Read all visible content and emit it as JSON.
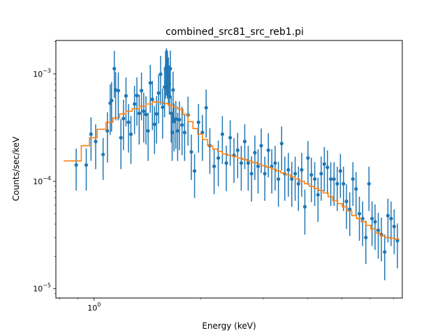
{
  "chart_data": {
    "type": "scatter",
    "title": "combined_src81_src_reb1.pi",
    "xlabel": "Energy (keV)",
    "ylabel": "Counts/sec/keV",
    "xscale": "log",
    "yscale": "log",
    "xlim": [
      0.78,
      7.4
    ],
    "ylim": [
      8.2e-06,
      0.00205
    ],
    "x_ticks": [
      {
        "value": 1.0,
        "label": "10^0"
      }
    ],
    "y_ticks": [
      {
        "value": 1e-05,
        "label": "10^-5"
      },
      {
        "value": 0.0001,
        "label": "10^-4"
      },
      {
        "value": 0.001,
        "label": "10^-3"
      }
    ],
    "grid": false,
    "colors": {
      "data": "#1f77b4",
      "model": "#ff7f0e"
    },
    "series": [
      {
        "type": "errorbar",
        "x": [
          0.89,
          0.95,
          0.98,
          1.01,
          1.06,
          1.09,
          1.11,
          1.12,
          1.14,
          1.15,
          1.17,
          1.19,
          1.21,
          1.23,
          1.25,
          1.27,
          1.3,
          1.32,
          1.34,
          1.36,
          1.38,
          1.4,
          1.42,
          1.44,
          1.46,
          1.48,
          1.5,
          1.52,
          1.54,
          1.56,
          1.58,
          1.59,
          1.6,
          1.61,
          1.62,
          1.63,
          1.64,
          1.65,
          1.66,
          1.67,
          1.68,
          1.7,
          1.72,
          1.74,
          1.77,
          1.8,
          1.84,
          1.88,
          1.92,
          1.97,
          2.02,
          2.07,
          2.12,
          2.18,
          2.24,
          2.3,
          2.36,
          2.42,
          2.48,
          2.54,
          2.6,
          2.66,
          2.72,
          2.78,
          2.84,
          2.9,
          2.96,
          3.03,
          3.1,
          3.17,
          3.24,
          3.31,
          3.38,
          3.45,
          3.53,
          3.61,
          3.69,
          3.77,
          3.85,
          3.93,
          4.01,
          4.1,
          4.19,
          4.28,
          4.37,
          4.46,
          4.55,
          4.65,
          4.75,
          4.85,
          4.95,
          5.05,
          5.15,
          5.26,
          5.37,
          5.48,
          5.6,
          5.72,
          5.84,
          5.96,
          6.08,
          6.2,
          6.33,
          6.46,
          6.6,
          6.74,
          6.88,
          7.02,
          7.17
        ],
        "y": [
          0.000142,
          0.000142,
          0.000275,
          0.000235,
          0.000178,
          0.000295,
          0.000535,
          0.000565,
          0.00112,
          0.00071,
          0.0007,
          0.000255,
          0.000385,
          0.000625,
          0.000355,
          0.000275,
          0.000525,
          0.00063,
          0.00043,
          0.0007,
          0.00045,
          0.00042,
          0.000295,
          0.000825,
          0.00058,
          0.00034,
          0.000425,
          0.000665,
          0.000995,
          0.00049,
          0.000755,
          0.00112,
          0.00118,
          0.00112,
          0.000965,
          0.00081,
          0.00112,
          0.00043,
          0.000285,
          0.00071,
          0.00036,
          0.00038,
          0.000295,
          0.000375,
          0.000335,
          0.000285,
          0.000415,
          0.000188,
          0.000125,
          0.000355,
          0.000285,
          0.000485,
          0.000215,
          0.000138,
          0.000165,
          0.000275,
          0.000148,
          0.000255,
          0.000175,
          0.000195,
          0.000148,
          0.000235,
          0.000148,
          0.000118,
          0.000185,
          0.000138,
          0.000215,
          0.000118,
          0.000195,
          0.000138,
          0.000148,
          0.000105,
          0.000225,
          0.000118,
          0.000128,
          0.000105,
          0.000118,
          9.5e-05,
          0.000128,
          5.8e-05,
          0.000165,
          0.000115,
          0.000105,
          7.5e-05,
          0.000118,
          0.000145,
          0.000135,
          0.000105,
          0.000105,
          9.5e-05,
          0.000125,
          9.5e-05,
          6.5e-05,
          5.5e-05,
          0.000105,
          8.5e-05,
          5e-05,
          4.5e-05,
          3e-05,
          9.5e-05,
          4.5e-05,
          4.2e-05,
          3.5e-05,
          3.2e-05,
          2.2e-05,
          4.8e-05,
          4.5e-05,
          3.8e-05,
          2.8e-05
        ],
        "err_low": [
          6e-05,
          6e-05,
          0.00012,
          0.000105,
          7.5e-05,
          0.000145,
          0.000265,
          0.000275,
          0.00052,
          0.00034,
          0.00033,
          0.000125,
          0.00019,
          0.0003,
          0.00017,
          0.00013,
          0.00025,
          0.0003,
          0.00021,
          0.00033,
          0.00022,
          0.0002,
          0.00014,
          0.00039,
          0.00028,
          0.00016,
          0.0002,
          0.00032,
          0.00048,
          0.00024,
          0.00036,
          0.00053,
          0.00055,
          0.00053,
          0.00046,
          0.00039,
          0.00053,
          0.0002,
          0.00013,
          0.00034,
          0.00017,
          0.00018,
          0.00014,
          0.00018,
          0.00016,
          0.00013,
          0.0002,
          8.5e-05,
          5.5e-05,
          0.00017,
          0.00013,
          0.00023,
          9.8e-05,
          6.2e-05,
          7.5e-05,
          0.00013,
          6.7e-05,
          0.000115,
          7.8e-05,
          8.8e-05,
          6.6e-05,
          0.000105,
          6.6e-05,
          5.3e-05,
          8.2e-05,
          6.1e-05,
          9.6e-05,
          5.2e-05,
          8.6e-05,
          6.1e-05,
          6.6e-05,
          4.7e-05,
          9.9e-05,
          5.2e-05,
          5.6e-05,
          4.7e-05,
          5.2e-05,
          4.2e-05,
          5.6e-05,
          2.6e-05,
          7.2e-05,
          5.1e-05,
          4.6e-05,
          3.3e-05,
          5.2e-05,
          6.4e-05,
          5.9e-05,
          4.6e-05,
          4.6e-05,
          4.2e-05,
          5.5e-05,
          4.2e-05,
          2.9e-05,
          2.4e-05,
          4.6e-05,
          3.7e-05,
          2.2e-05,
          2e-05,
          1.3e-05,
          4.2e-05,
          2e-05,
          1.9e-05,
          1.6e-05,
          1.4e-05,
          1e-05,
          2.1e-05,
          2e-05,
          1.7e-05,
          1.25e-05
        ],
        "err_high": [
          6e-05,
          6e-05,
          0.00012,
          0.000105,
          7.5e-05,
          0.000145,
          0.000265,
          0.000275,
          0.00052,
          0.00034,
          0.00033,
          0.000125,
          0.00019,
          0.0003,
          0.00017,
          0.00013,
          0.00025,
          0.0003,
          0.00021,
          0.00033,
          0.00022,
          0.0002,
          0.00014,
          0.00039,
          0.00028,
          0.00016,
          0.0002,
          0.00032,
          0.00048,
          0.00024,
          0.00036,
          0.00053,
          0.00055,
          0.00053,
          0.00046,
          0.00039,
          0.00053,
          0.0002,
          0.00013,
          0.00034,
          0.00017,
          0.00018,
          0.00014,
          0.00018,
          0.00016,
          0.00013,
          0.0002,
          8.5e-05,
          5.5e-05,
          0.00017,
          0.00013,
          0.00023,
          9.8e-05,
          6.2e-05,
          7.5e-05,
          0.00013,
          6.7e-05,
          0.000115,
          7.8e-05,
          8.8e-05,
          6.6e-05,
          0.000105,
          6.6e-05,
          5.3e-05,
          8.2e-05,
          6.1e-05,
          9.6e-05,
          5.2e-05,
          8.6e-05,
          6.1e-05,
          6.6e-05,
          4.7e-05,
          9.9e-05,
          5.2e-05,
          5.6e-05,
          4.7e-05,
          5.2e-05,
          4.2e-05,
          5.6e-05,
          2.6e-05,
          7.2e-05,
          5.1e-05,
          4.6e-05,
          3.3e-05,
          5.2e-05,
          6.4e-05,
          5.9e-05,
          4.6e-05,
          4.6e-05,
          4.2e-05,
          5.5e-05,
          4.2e-05,
          2.9e-05,
          2.4e-05,
          4.6e-05,
          3.7e-05,
          2.2e-05,
          2e-05,
          1.3e-05,
          4.2e-05,
          2e-05,
          1.9e-05,
          1.6e-05,
          1.4e-05,
          1e-05,
          2.1e-05,
          2e-05,
          1.7e-05,
          1.25e-05
        ]
      },
      {
        "type": "step",
        "x": [
          0.82,
          0.92,
          0.97,
          1.02,
          1.08,
          1.13,
          1.18,
          1.23,
          1.28,
          1.34,
          1.4,
          1.46,
          1.52,
          1.57,
          1.62,
          1.67,
          1.72,
          1.78,
          1.84,
          1.9,
          1.96,
          2.02,
          2.09,
          2.16,
          2.23,
          2.3,
          2.38,
          2.46,
          2.54,
          2.62,
          2.7,
          2.79,
          2.88,
          2.97,
          3.06,
          3.16,
          3.26,
          3.36,
          3.47,
          3.58,
          3.69,
          3.8,
          3.92,
          4.04,
          4.17,
          4.3,
          4.43,
          4.57,
          4.71,
          4.86,
          5.01,
          5.17,
          5.33,
          5.5,
          5.67,
          5.85,
          6.03,
          6.22,
          6.42,
          6.62,
          6.83,
          7.05
        ],
        "y": [
          0.000155,
          0.000215,
          0.000255,
          0.000305,
          0.000355,
          0.00039,
          0.000425,
          0.00045,
          0.000475,
          0.0005,
          0.000525,
          0.00055,
          0.000545,
          0.00053,
          0.00051,
          0.00049,
          0.00047,
          0.00042,
          0.00036,
          0.00031,
          0.000275,
          0.000245,
          0.000215,
          0.0002,
          0.00019,
          0.00018,
          0.000175,
          0.00017,
          0.000165,
          0.00016,
          0.000155,
          0.00015,
          0.000145,
          0.00014,
          0.000135,
          0.00013,
          0.000125,
          0.00012,
          0.000115,
          0.00011,
          0.000105,
          0.0001,
          9.5e-05,
          9e-05,
          8.6e-05,
          8.2e-05,
          7.8e-05,
          7.2e-05,
          6.6e-05,
          6.2e-05,
          5.8e-05,
          5.3e-05,
          4.8e-05,
          4.5e-05,
          4.2e-05,
          3.9e-05,
          3.6e-05,
          3.3e-05,
          3.1e-05,
          3e-05,
          2.95e-05,
          2.9e-05
        ]
      }
    ]
  }
}
